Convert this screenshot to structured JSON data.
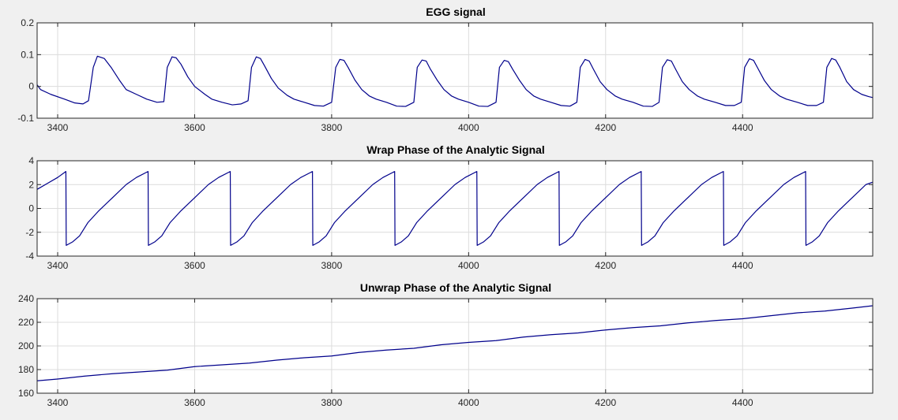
{
  "chart_data": [
    {
      "type": "line",
      "title": "EGG signal",
      "xlim": [
        3370,
        4590
      ],
      "ylim": [
        -0.1,
        0.2
      ],
      "xticks": [
        3400,
        3600,
        3800,
        4000,
        4200,
        4400
      ],
      "xtick_labels": [
        "3400",
        "3600",
        "3800",
        "4000",
        "4200",
        "4400"
      ],
      "yticks": [
        -0.1,
        0,
        0.1,
        0.2
      ],
      "ytick_labels": [
        "-0.1",
        "0",
        "0.1",
        "0.2"
      ],
      "grid": true,
      "line_color": "#00008b",
      "series": [
        {
          "x": [
            3370,
            3375,
            3390,
            3410,
            3425,
            3437,
            3445,
            3452,
            3458,
            3468,
            3478,
            3490,
            3500,
            3515,
            3530,
            3545,
            3555,
            3560,
            3567,
            3573,
            3580,
            3590,
            3600,
            3615,
            3625,
            3640,
            3655,
            3668,
            3678,
            3683,
            3690,
            3696,
            3702,
            3712,
            3722,
            3735,
            3745,
            3760,
            3775,
            3788,
            3800,
            3806,
            3812,
            3818,
            3824,
            3834,
            3844,
            3855,
            3865,
            3880,
            3895,
            3908,
            3920,
            3925,
            3932,
            3938,
            3944,
            3954,
            3964,
            3975,
            3985,
            4000,
            4015,
            4028,
            4040,
            4045,
            4052,
            4058,
            4064,
            4074,
            4084,
            4095,
            4105,
            4120,
            4135,
            4148,
            4158,
            4163,
            4170,
            4176,
            4182,
            4192,
            4202,
            4214,
            4224,
            4240,
            4255,
            4268,
            4278,
            4283,
            4290,
            4296,
            4302,
            4312,
            4322,
            4334,
            4344,
            4360,
            4375,
            4388,
            4398,
            4403,
            4410,
            4416,
            4422,
            4432,
            4442,
            4454,
            4464,
            4480,
            4495,
            4508,
            4518,
            4523,
            4530,
            4536,
            4542,
            4552,
            4562,
            4574,
            4584,
            4590
          ],
          "y": [
            0.005,
            -0.01,
            -0.025,
            -0.04,
            -0.052,
            -0.055,
            -0.045,
            0.06,
            0.095,
            0.088,
            0.06,
            0.02,
            -0.01,
            -0.025,
            -0.04,
            -0.05,
            -0.048,
            0.06,
            0.093,
            0.09,
            0.07,
            0.03,
            0.0,
            -0.025,
            -0.04,
            -0.05,
            -0.058,
            -0.055,
            -0.045,
            0.06,
            0.093,
            0.088,
            0.065,
            0.025,
            -0.005,
            -0.028,
            -0.04,
            -0.05,
            -0.06,
            -0.062,
            -0.05,
            0.06,
            0.085,
            0.082,
            0.06,
            0.02,
            -0.01,
            -0.03,
            -0.04,
            -0.05,
            -0.062,
            -0.063,
            -0.05,
            0.06,
            0.083,
            0.08,
            0.055,
            0.02,
            -0.01,
            -0.03,
            -0.04,
            -0.05,
            -0.062,
            -0.063,
            -0.05,
            0.06,
            0.082,
            0.078,
            0.055,
            0.02,
            -0.01,
            -0.03,
            -0.04,
            -0.05,
            -0.06,
            -0.062,
            -0.05,
            0.06,
            0.085,
            0.08,
            0.055,
            0.015,
            -0.01,
            -0.03,
            -0.04,
            -0.05,
            -0.062,
            -0.063,
            -0.05,
            0.06,
            0.084,
            0.08,
            0.055,
            0.015,
            -0.01,
            -0.03,
            -0.04,
            -0.05,
            -0.06,
            -0.06,
            -0.05,
            0.06,
            0.087,
            0.082,
            0.058,
            0.018,
            -0.01,
            -0.03,
            -0.04,
            -0.05,
            -0.06,
            -0.06,
            -0.05,
            0.06,
            0.088,
            0.083,
            0.06,
            0.015,
            -0.01,
            -0.025,
            -0.032,
            -0.035
          ]
        }
      ]
    },
    {
      "type": "line",
      "title": "Wrap Phase of the Analytic Signal",
      "xlim": [
        3370,
        4590
      ],
      "ylim": [
        -4,
        4
      ],
      "xticks": [
        3400,
        3600,
        3800,
        4000,
        4200,
        4400
      ],
      "xtick_labels": [
        "3400",
        "3600",
        "3800",
        "4000",
        "4200",
        "4400"
      ],
      "yticks": [
        -4,
        -2,
        0,
        2,
        4
      ],
      "ytick_labels": [
        "-4",
        "-2",
        "0",
        "2",
        "4"
      ],
      "grid": true,
      "line_color": "#00008b",
      "series": [
        {
          "x": [
            3370,
            3385,
            3400,
            3412,
            3412.5,
            3422,
            3432,
            3444,
            3460,
            3480,
            3500,
            3515,
            3532,
            3532.5,
            3542,
            3552,
            3564,
            3580,
            3600,
            3620,
            3635,
            3652,
            3652.5,
            3662,
            3672,
            3684,
            3700,
            3720,
            3740,
            3755,
            3772,
            3772.5,
            3782,
            3792,
            3804,
            3820,
            3840,
            3860,
            3875,
            3892,
            3892.5,
            3902,
            3912,
            3924,
            3940,
            3960,
            3980,
            3995,
            4012,
            4012.5,
            4022,
            4032,
            4044,
            4060,
            4080,
            4100,
            4115,
            4132,
            4132.5,
            4142,
            4152,
            4164,
            4180,
            4200,
            4220,
            4235,
            4252,
            4252.5,
            4262,
            4272,
            4284,
            4300,
            4320,
            4340,
            4355,
            4372,
            4372.5,
            4382,
            4392,
            4404,
            4420,
            4440,
            4460,
            4475,
            4492,
            4492.5,
            4502,
            4512,
            4524,
            4540,
            4560,
            4580,
            4590
          ],
          "y": [
            1.6,
            2.1,
            2.6,
            3.1,
            -3.1,
            -2.8,
            -2.3,
            -1.2,
            -0.2,
            0.9,
            2.0,
            2.6,
            3.1,
            -3.1,
            -2.8,
            -2.3,
            -1.2,
            -0.2,
            0.9,
            2.0,
            2.6,
            3.1,
            -3.1,
            -2.8,
            -2.3,
            -1.2,
            -0.2,
            0.9,
            2.0,
            2.6,
            3.1,
            -3.1,
            -2.8,
            -2.3,
            -1.2,
            -0.2,
            0.9,
            2.0,
            2.6,
            3.1,
            -3.1,
            -2.8,
            -2.3,
            -1.2,
            -0.2,
            0.9,
            2.0,
            2.6,
            3.1,
            -3.1,
            -2.8,
            -2.3,
            -1.2,
            -0.2,
            0.9,
            2.0,
            2.6,
            3.1,
            -3.1,
            -2.8,
            -2.3,
            -1.2,
            -0.2,
            0.9,
            2.0,
            2.6,
            3.1,
            -3.1,
            -2.8,
            -2.3,
            -1.2,
            -0.2,
            0.9,
            2.0,
            2.6,
            3.1,
            -3.1,
            -2.8,
            -2.3,
            -1.2,
            -0.2,
            0.9,
            2.0,
            2.6,
            3.1,
            -3.1,
            -2.8,
            -2.3,
            -1.2,
            -0.2,
            0.9,
            2.0,
            2.2
          ]
        }
      ]
    },
    {
      "type": "line",
      "title": "Unwrap Phase of the Analytic Signal",
      "xlim": [
        3370,
        4590
      ],
      "ylim": [
        160,
        240
      ],
      "xticks": [
        3400,
        3600,
        3800,
        4000,
        4200,
        4400
      ],
      "xtick_labels": [
        "3400",
        "3600",
        "3800",
        "4000",
        "4200",
        "4400"
      ],
      "yticks": [
        160,
        180,
        200,
        220,
        240
      ],
      "ytick_labels": [
        "160",
        "180",
        "200",
        "220",
        "240"
      ],
      "grid": true,
      "line_color": "#00008b",
      "series": [
        {
          "x": [
            3370,
            3400,
            3440,
            3480,
            3520,
            3560,
            3600,
            3640,
            3680,
            3720,
            3760,
            3800,
            3840,
            3880,
            3920,
            3960,
            4000,
            4040,
            4080,
            4120,
            4160,
            4200,
            4240,
            4280,
            4320,
            4360,
            4400,
            4440,
            4480,
            4520,
            4560,
            4590
          ],
          "y": [
            170.5,
            172,
            174.5,
            176.5,
            178,
            179.5,
            182.5,
            184,
            185.5,
            188,
            190,
            191.5,
            194.5,
            196.5,
            198,
            201,
            203,
            204.5,
            207.5,
            209.5,
            211,
            213.5,
            215.5,
            217,
            219.5,
            221.5,
            223,
            225.5,
            228,
            229.5,
            232,
            234
          ]
        }
      ]
    }
  ]
}
